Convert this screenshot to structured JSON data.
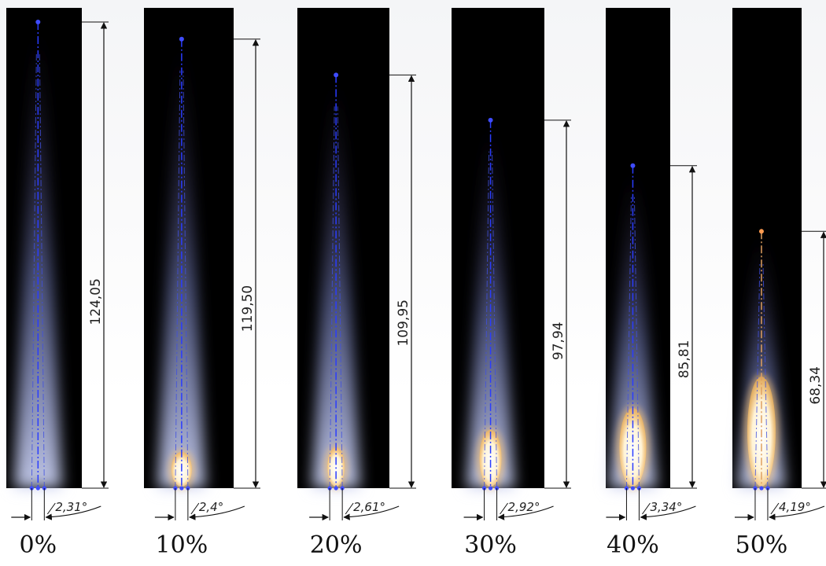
{
  "panels": [
    {
      "label": "0%",
      "length": "124,05",
      "angle": "2,31°",
      "jet_length": 124.05,
      "angle_deg": 2.31
    },
    {
      "label": "10%",
      "length": "119,50",
      "angle": "2,4°",
      "jet_length": 119.5,
      "angle_deg": 2.4
    },
    {
      "label": "20%",
      "length": "109,95",
      "angle": "2,61°",
      "jet_length": 109.95,
      "angle_deg": 2.61
    },
    {
      "label": "30%",
      "length": "97,94",
      "angle": "2,92°",
      "jet_length": 97.94,
      "angle_deg": 2.92
    },
    {
      "label": "40%",
      "length": "85,81",
      "angle": "3,34°",
      "jet_length": 85.81,
      "angle_deg": 3.34
    },
    {
      "label": "50%",
      "length": "68,34",
      "angle": "4,19°",
      "jet_length": 68.34,
      "angle_deg": 4.19
    }
  ],
  "colors": {
    "background": "#000000",
    "plume": "#9ea7d8",
    "axis_line": "#2a3cff",
    "core": "#fff6dc",
    "core_glow": "#ffc46a",
    "dimension_line": "#111111"
  }
}
